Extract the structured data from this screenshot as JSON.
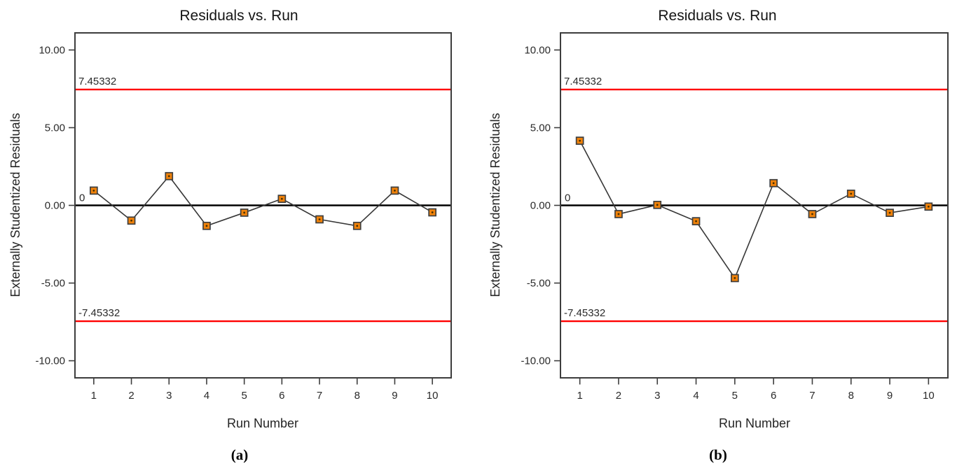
{
  "colors": {
    "background": "#ffffff",
    "text": "#1f1f1f",
    "plot_border": "#3d3d3d",
    "limit_line": "#ff0000",
    "center_line": "#000000",
    "series_line": "#373737",
    "marker_fill": "#f0820a",
    "marker_border": "#3f3f3f"
  },
  "chart_data": [
    {
      "type": "line",
      "title": "Residuals vs. Run",
      "xlabel": "Run Number",
      "ylabel": "Externally Studentized Residuals",
      "caption": "(a)",
      "legend": "none",
      "grid": false,
      "x": [
        1,
        2,
        3,
        4,
        5,
        6,
        7,
        8,
        9,
        10
      ],
      "values": [
        0.95,
        -0.98,
        1.88,
        -1.32,
        -0.47,
        0.42,
        -0.9,
        -1.32,
        0.95,
        -0.45
      ],
      "xlim": [
        0.5,
        10.5
      ],
      "ylim": [
        -11.1,
        11.1
      ],
      "x_ticks": [
        {
          "value": 1,
          "label": "1"
        },
        {
          "value": 2,
          "label": "2"
        },
        {
          "value": 3,
          "label": "3"
        },
        {
          "value": 4,
          "label": "4"
        },
        {
          "value": 5,
          "label": "5"
        },
        {
          "value": 6,
          "label": "6"
        },
        {
          "value": 7,
          "label": "7"
        },
        {
          "value": 8,
          "label": "8"
        },
        {
          "value": 9,
          "label": "9"
        },
        {
          "value": 10,
          "label": "10"
        }
      ],
      "y_ticks": [
        {
          "value": 10,
          "label": "10.00"
        },
        {
          "value": 5,
          "label": "5.00"
        },
        {
          "value": 0,
          "label": "0.00"
        },
        {
          "value": -5,
          "label": "-5.00"
        },
        {
          "value": -10,
          "label": "-10.00"
        }
      ],
      "upper_limit": {
        "value": 7.45332,
        "label": "7.45332"
      },
      "lower_limit": {
        "value": -7.45332,
        "label": "-7.45332"
      },
      "center_line": {
        "value": 0,
        "label": "0"
      }
    },
    {
      "type": "line",
      "title": "Residuals vs. Run",
      "xlabel": "Run Number",
      "ylabel": "Externally Studentized Residuals",
      "caption": "(b)",
      "legend": "none",
      "grid": false,
      "x": [
        1,
        2,
        3,
        4,
        5,
        6,
        7,
        8,
        9,
        10
      ],
      "values": [
        4.16,
        -0.56,
        0.03,
        -1.02,
        -4.68,
        1.43,
        -0.56,
        0.75,
        -0.48,
        -0.08
      ],
      "xlim": [
        0.5,
        10.5
      ],
      "ylim": [
        -11.1,
        11.1
      ],
      "x_ticks": [
        {
          "value": 1,
          "label": "1"
        },
        {
          "value": 2,
          "label": "2"
        },
        {
          "value": 3,
          "label": "3"
        },
        {
          "value": 4,
          "label": "4"
        },
        {
          "value": 5,
          "label": "5"
        },
        {
          "value": 6,
          "label": "6"
        },
        {
          "value": 7,
          "label": "7"
        },
        {
          "value": 8,
          "label": "8"
        },
        {
          "value": 9,
          "label": "9"
        },
        {
          "value": 10,
          "label": "10"
        }
      ],
      "y_ticks": [
        {
          "value": 10,
          "label": "10.00"
        },
        {
          "value": 5,
          "label": "5.00"
        },
        {
          "value": 0,
          "label": "0.00"
        },
        {
          "value": -5,
          "label": "-5.00"
        },
        {
          "value": -10,
          "label": "-10.00"
        }
      ],
      "upper_limit": {
        "value": 7.45332,
        "label": "7.45332"
      },
      "lower_limit": {
        "value": -7.45332,
        "label": "-7.45332"
      },
      "center_line": {
        "value": 0,
        "label": "0"
      }
    }
  ]
}
